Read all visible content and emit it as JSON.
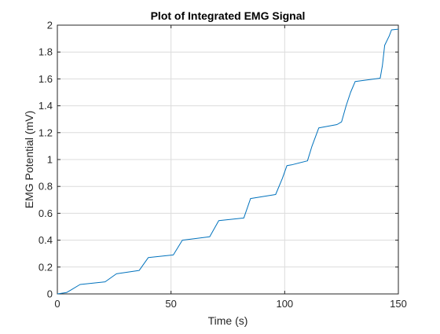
{
  "chart_data": {
    "type": "line",
    "title": "Plot of Integrated EMG Signal",
    "xlabel": "Time (s)",
    "ylabel": "EMG Potential (mV)",
    "xlim": [
      0,
      150
    ],
    "ylim": [
      0,
      2
    ],
    "xticks": [
      0,
      50,
      100,
      150
    ],
    "yticks": [
      0,
      0.2,
      0.4,
      0.6,
      0.8,
      1,
      1.2,
      1.4,
      1.6,
      1.8,
      2
    ],
    "xtick_labels": [
      "0",
      "50",
      "100",
      "150"
    ],
    "ytick_labels": [
      "0",
      "0.2",
      "0.4",
      "0.6",
      "0.8",
      "1",
      "1.2",
      "1.4",
      "1.6",
      "1.8",
      "2"
    ],
    "grid": true,
    "series_color": "#0072BD",
    "series": [
      {
        "x": [
          0,
          4,
          6,
          10,
          21,
          26,
          36,
          40,
          51,
          55,
          67,
          71,
          82,
          85,
          96,
          99,
          101,
          103,
          110,
          112,
          115,
          123,
          125,
          127,
          129,
          131,
          142,
          143,
          144,
          146,
          147,
          150
        ],
        "values": [
          0,
          0.01,
          0.03,
          0.07,
          0.09,
          0.15,
          0.175,
          0.27,
          0.29,
          0.4,
          0.425,
          0.545,
          0.565,
          0.71,
          0.74,
          0.86,
          0.955,
          0.96,
          0.99,
          1.1,
          1.235,
          1.26,
          1.28,
          1.4,
          1.5,
          1.58,
          1.605,
          1.7,
          1.85,
          1.92,
          1.965,
          1.97
        ]
      }
    ]
  }
}
